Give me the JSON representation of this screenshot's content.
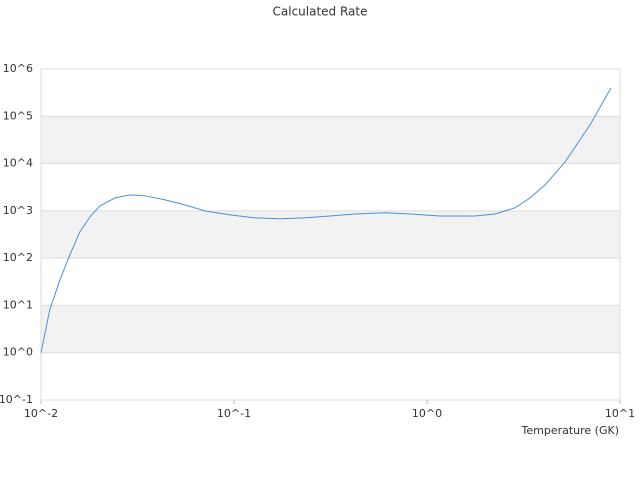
{
  "chart_data": {
    "type": "line",
    "title": "Calculated Rate",
    "x_label": "Temperature (GK)",
    "x": [
      0.01,
      0.0111,
      0.01254,
      0.0141,
      0.0159,
      0.01795,
      0.0202,
      0.0242,
      0.0289,
      0.0346,
      0.0439,
      0.0557,
      0.0707,
      0.0954,
      0.1285,
      0.173,
      0.233,
      0.314,
      0.424,
      0.605,
      0.816,
      1.167,
      1.773,
      2.25,
      2.86,
      3.42,
      4.09,
      5.19,
      6.99,
      8.98
    ],
    "values": [
      1,
      8.1,
      35,
      117,
      360,
      750,
      1270,
      1880,
      2180,
      2080,
      1710,
      1340,
      1000,
      820,
      710,
      680,
      710,
      780,
      860,
      910,
      860,
      780,
      780,
      860,
      1160,
      1880,
      3540,
      10800,
      65600,
      397000
    ],
    "color": "#4a90d9",
    "xscale": "log",
    "yscale": "log",
    "xlim": [
      0.01,
      10
    ],
    "ylim": [
      0.1,
      1000000
    ],
    "xticks": [
      {
        "value": 0.01,
        "label": "10^-2"
      },
      {
        "value": 0.1,
        "label": "10^-1"
      },
      {
        "value": 1,
        "label": "10^0"
      },
      {
        "value": 10,
        "label": "10^1"
      }
    ],
    "yticks": [
      {
        "value": 0.1,
        "label": "10^-1"
      },
      {
        "value": 1,
        "label": "10^0"
      },
      {
        "value": 10,
        "label": "10^1"
      },
      {
        "value": 100,
        "label": "10^2"
      },
      {
        "value": 1000,
        "label": "10^3"
      },
      {
        "value": 10000,
        "label": "10^4"
      },
      {
        "value": 100000,
        "label": "10^5"
      },
      {
        "value": 1000000,
        "label": "10^6"
      }
    ],
    "grid": true,
    "grid_bands": true
  }
}
